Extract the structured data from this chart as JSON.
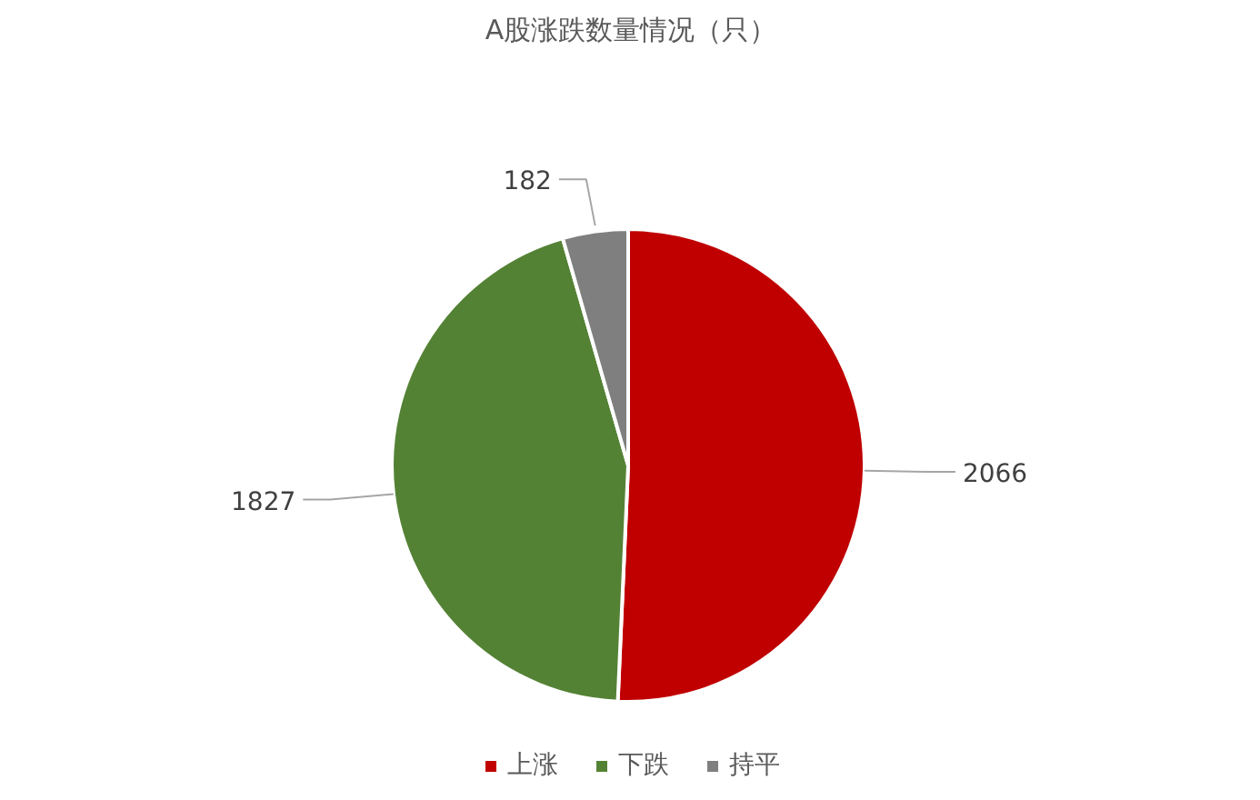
{
  "chart_data": {
    "type": "pie",
    "title": "A股涨跌数量情况（只）",
    "categories": [
      "上涨",
      "下跌",
      "持平"
    ],
    "values": [
      2066,
      1827,
      182
    ],
    "colors": [
      "#c00000",
      "#548235",
      "#7f7f7f"
    ],
    "data_labels": true,
    "legend": "bottom"
  }
}
